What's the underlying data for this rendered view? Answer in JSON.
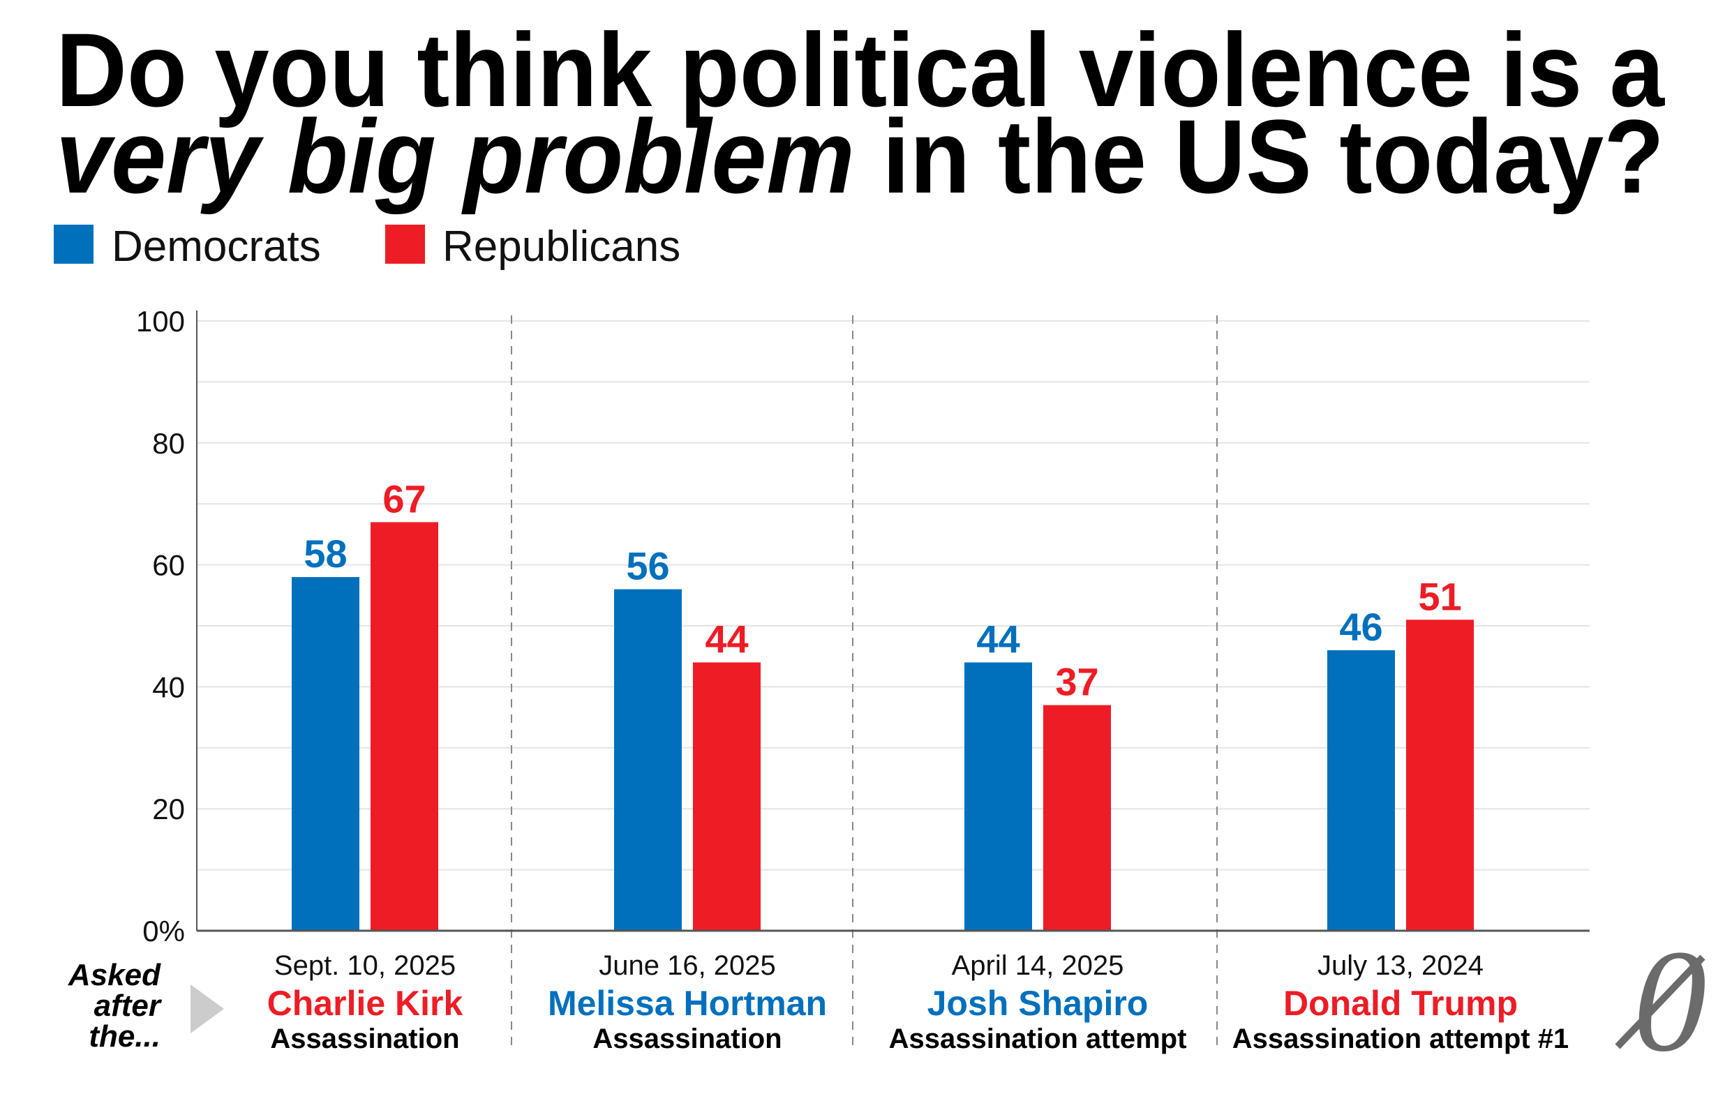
{
  "colors": {
    "democrats": "#0070BD",
    "republicans": "#EE1C25",
    "logo": "#6b6b6b",
    "arrow": "#cccccc"
  },
  "logo_text": "0",
  "asked_label": [
    "Asked",
    "after",
    "the..."
  ],
  "chart_data": {
    "type": "bar",
    "title_line1": "Do you think political violence is a",
    "title_line2_emphasis": "very big problem",
    "title_line2_rest": " in the US today?",
    "legend": [
      "Democrats",
      "Republicans"
    ],
    "legend_position": "top-left",
    "ylim": [
      0,
      100
    ],
    "yticks": [
      0,
      20,
      40,
      60,
      80,
      100
    ],
    "ytick_labels": [
      "0%",
      "20",
      "40",
      "60",
      "80",
      "100"
    ],
    "grid": true,
    "categories": [
      {
        "date": "Sept. 10, 2025",
        "name": "Charlie Kirk",
        "name_party": "republicans",
        "event": "Assassination"
      },
      {
        "date": "June 16, 2025",
        "name": "Melissa Hortman",
        "name_party": "democrats",
        "event": "Assassination"
      },
      {
        "date": "April 14, 2025",
        "name": "Josh Shapiro",
        "name_party": "democrats",
        "event": "Assassination attempt"
      },
      {
        "date": "July 13, 2024",
        "name": "Donald Trump",
        "name_party": "republicans",
        "event": "Assassination attempt #1"
      }
    ],
    "series": [
      {
        "name": "Democrats",
        "key": "democrats",
        "values": [
          58,
          56,
          44,
          46
        ]
      },
      {
        "name": "Republicans",
        "key": "republicans",
        "values": [
          67,
          44,
          37,
          51
        ]
      }
    ]
  }
}
